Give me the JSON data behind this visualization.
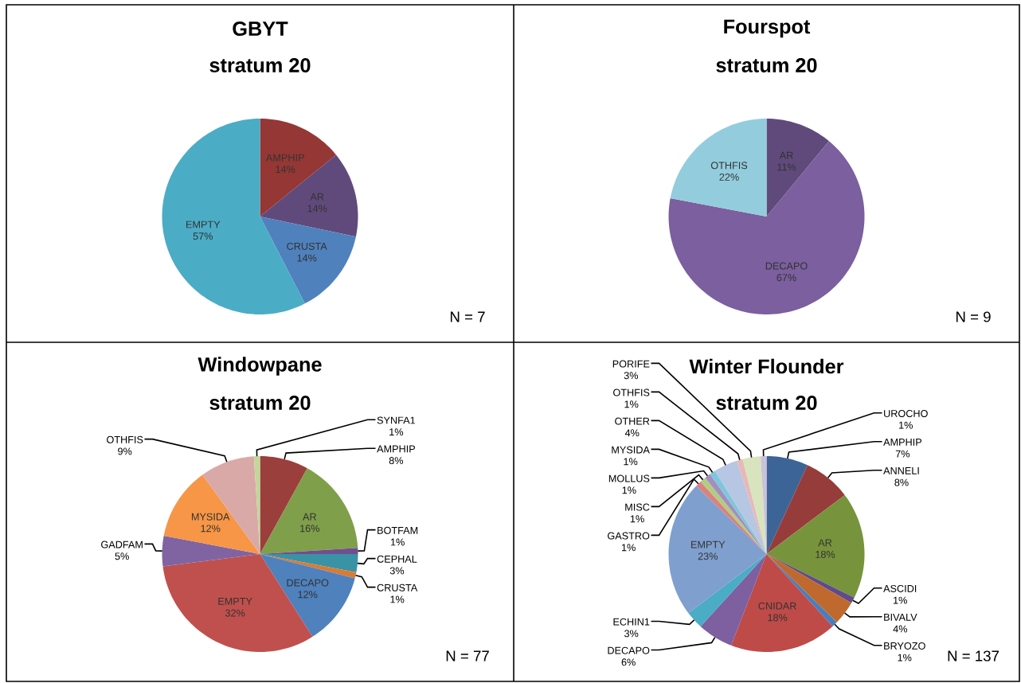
{
  "chart_data": [
    {
      "type": "pie",
      "title": "GBYT",
      "subtitle": "stratum 20",
      "categories": [
        "AMPHIP",
        "AR",
        "CRUSTA",
        "EMPTY"
      ],
      "values": [
        14,
        14,
        14,
        57
      ],
      "value_labels": [
        "14%",
        "14%",
        "14%",
        "57%"
      ],
      "colors": [
        "#953735",
        "#604a7b",
        "#4f81bd",
        "#4bacc6"
      ],
      "annotations": [
        "N = 7"
      ]
    },
    {
      "type": "pie",
      "title": "Fourspot",
      "subtitle": "stratum 20",
      "categories": [
        "AR",
        "DECAPO",
        "OTHFIS"
      ],
      "values": [
        11,
        67,
        22
      ],
      "value_labels": [
        "11%",
        "67%",
        "22%"
      ],
      "colors": [
        "#604a7b",
        "#7b5f9e",
        "#93cddd"
      ],
      "annotations": [
        "N = 9"
      ]
    },
    {
      "type": "pie",
      "title": "Windowpane",
      "subtitle": "stratum 20",
      "categories": [
        "AMPHIP",
        "AR",
        "BOTFAM",
        "CEPHAL",
        "CRUSTA",
        "DECAPO",
        "EMPTY",
        "GADFAM",
        "MYSIDA",
        "OTHFIS",
        "SYNFA1"
      ],
      "values": [
        8,
        16,
        1,
        3,
        1,
        12,
        32,
        5,
        12,
        9,
        1
      ],
      "value_labels": [
        "8%",
        "16%",
        "1%",
        "3%",
        "1%",
        "12%",
        "32%",
        "5%",
        "12%",
        "9%",
        "1%"
      ],
      "colors": [
        "#9b3f3c",
        "#7f9f4a",
        "#6f4f8f",
        "#3a92a5",
        "#d87b33",
        "#4f81bd",
        "#c0504d",
        "#8064a2",
        "#f79646",
        "#d9a9a8",
        "#c3d69b"
      ],
      "annotations": [
        "N = 77"
      ]
    },
    {
      "type": "pie",
      "title": "Winter Flounder",
      "subtitle": "stratum 20",
      "categories": [
        "AMPHIP",
        "ANNELI",
        "AR",
        "ASCIDI",
        "BIVALV",
        "BRYOZO",
        "CNIDAR",
        "DECAPO",
        "ECHIN1",
        "EMPTY",
        "GASTRO",
        "MISC",
        "MOLLUS",
        "MYSIDA",
        "OTHER",
        "OTHFIS",
        "PORIFE",
        "UROCHO"
      ],
      "values": [
        7,
        8,
        18,
        1,
        4,
        1,
        18,
        6,
        3,
        23,
        1,
        1,
        1,
        1,
        4,
        1,
        3,
        1
      ],
      "value_labels": [
        "7%",
        "8%",
        "18%",
        "1%",
        "4%",
        "1%",
        "18%",
        "6%",
        "3%",
        "23%",
        "1%",
        "1%",
        "1%",
        "1%",
        "4%",
        "1%",
        "3%",
        "1%"
      ],
      "colors": [
        "#3d6496",
        "#963c3a",
        "#77933c",
        "#5f4b8b",
        "#c0692e",
        "#4a7ebb",
        "#be4b48",
        "#7e5fa0",
        "#4aacc5",
        "#7f9fcf",
        "#d9827f",
        "#b3cc82",
        "#a18fbf",
        "#7fc6db",
        "#b7c6e2",
        "#e6b9b8",
        "#d7e4bd",
        "#ccc1da"
      ],
      "annotations": [
        "N = 137"
      ]
    }
  ]
}
